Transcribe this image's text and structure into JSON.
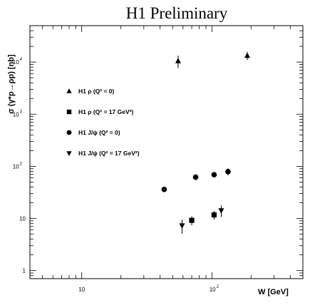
{
  "chart_data": {
    "type": "scatter",
    "title": "H1 Preliminary",
    "xlabel": "W  [GeV]",
    "ylabel": "σ (γ*p→ρp)  [nb]",
    "x_scale": "log",
    "y_scale": "log",
    "xlim": [
      4,
      500
    ],
    "ylim": [
      0.7,
      50000
    ],
    "x_ticks": [
      {
        "value": 10,
        "base": "10",
        "exp": ""
      },
      {
        "value": 100,
        "base": "10",
        "exp": "2"
      }
    ],
    "y_ticks": [
      {
        "value": 1,
        "base": "1",
        "exp": ""
      },
      {
        "value": 10,
        "base": "10",
        "exp": ""
      },
      {
        "value": 100,
        "base": "10",
        "exp": "2"
      },
      {
        "value": 1000,
        "base": "10",
        "exp": "3"
      },
      {
        "value": 10000,
        "base": "10",
        "exp": "4"
      }
    ],
    "grid": false,
    "legend_position": "left",
    "series": [
      {
        "name": "H1 ρ (Q² = 0)",
        "marker": "triangle-up",
        "points": [
          {
            "x": 55,
            "y": 10500,
            "err_lo": 2800,
            "err_hi": 2800
          },
          {
            "x": 187,
            "y": 13300,
            "err_lo": 2400,
            "err_hi": 2400
          }
        ]
      },
      {
        "name": "H1 ρ (Q² = 17 GeV²)",
        "marker": "square",
        "points": [
          {
            "x": 70,
            "y": 9.2,
            "err_lo": 1.8,
            "err_hi": 1.8
          },
          {
            "x": 104,
            "y": 11.7,
            "err_lo": 2.2,
            "err_hi": 2.2
          }
        ]
      },
      {
        "name": "H1 J/ψ (Q² = 0)",
        "marker": "circle",
        "points": [
          {
            "x": 43,
            "y": 36,
            "err_lo": 3,
            "err_hi": 3
          },
          {
            "x": 75,
            "y": 62,
            "err_lo": 8,
            "err_hi": 8
          },
          {
            "x": 104,
            "y": 69,
            "err_lo": 7,
            "err_hi": 7
          },
          {
            "x": 133,
            "y": 79,
            "err_lo": 12,
            "err_hi": 12
          }
        ]
      },
      {
        "name": "H1 J/ψ (Q² = 17 GeV²)",
        "marker": "triangle-down",
        "points": [
          {
            "x": 59,
            "y": 7.3,
            "err_lo": 2.2,
            "err_hi": 2.2
          },
          {
            "x": 118,
            "y": 14.2,
            "err_lo": 3.5,
            "err_hi": 3.5
          }
        ]
      }
    ]
  }
}
